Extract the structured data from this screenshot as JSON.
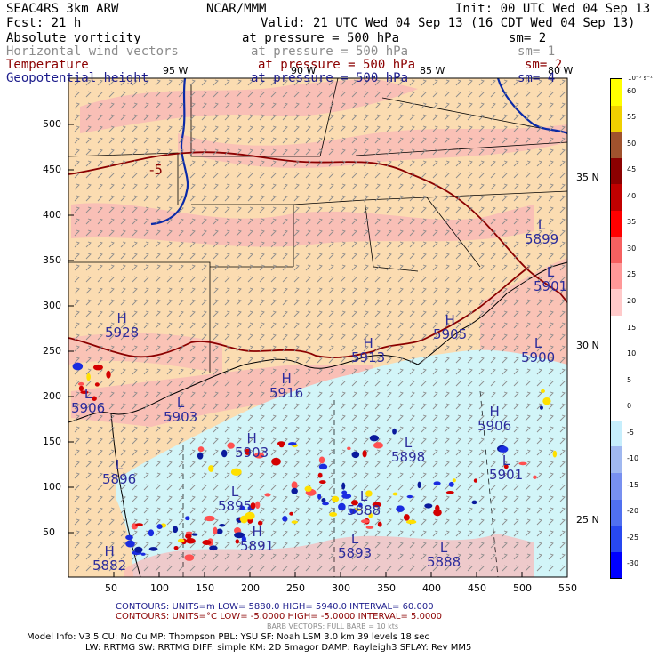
{
  "header": {
    "model_run": "SEAC4RS  3km ARW",
    "center": "NCAR/MMM",
    "init": "Init: 00 UTC Wed 04 Sep 13",
    "fcst": "Fcst:   21 h",
    "valid": "Valid: 21 UTC Wed 04 Sep 13 (16 CDT Wed 04 Sep 13)"
  },
  "fields": [
    {
      "name": "Absolute vorticity",
      "level": "at pressure =  500 hPa",
      "sm": "sm= 2",
      "color": "#000000"
    },
    {
      "name": "Horizontal wind vectors",
      "level": "at pressure =  500 hPa",
      "sm": "sm= 1",
      "color": "#8c8c8c"
    },
    {
      "name": "Temperature",
      "level": "at pressure =  500 hPa",
      "sm": "sm= 2",
      "color": "#8b0000"
    },
    {
      "name": "Geopotential height",
      "level": "at pressure =  500 hPa",
      "sm": "sm= 4",
      "color": "#1c1c8c"
    }
  ],
  "map": {
    "lon_labels": [
      "95 W",
      "90 W",
      "85 W",
      "80 W"
    ],
    "lat_labels": [
      "35 N",
      "30 N",
      "25 N"
    ],
    "x_ticks": [
      "50",
      "100",
      "150",
      "200",
      "250",
      "300",
      "350",
      "400",
      "450",
      "500",
      "550"
    ],
    "y_ticks": [
      "500",
      "450",
      "400",
      "350",
      "300",
      "250",
      "200",
      "150",
      "100",
      "50"
    ],
    "height_labels": [
      {
        "t": "H",
        "v": "5928"
      },
      {
        "t": "L",
        "v": "5906"
      },
      {
        "t": "L",
        "v": "5903"
      },
      {
        "t": "H",
        "v": "5916"
      },
      {
        "t": "H",
        "v": "5913"
      },
      {
        "t": "H",
        "v": "5905"
      },
      {
        "t": "L",
        "v": "5899"
      },
      {
        "t": "L",
        "v": "5901"
      },
      {
        "t": "L",
        "v": "5900"
      },
      {
        "t": "H",
        "v": "5906"
      },
      {
        "t": "H",
        "v": "5903"
      },
      {
        "t": "L",
        "v": "5898"
      },
      {
        "t": "L",
        "v": "5901"
      },
      {
        "t": "L",
        "v": "5896"
      },
      {
        "t": "L",
        "v": "5895"
      },
      {
        "t": "L",
        "v": "5888"
      },
      {
        "t": "H",
        "v": "5891"
      },
      {
        "t": "L",
        "v": "5893"
      },
      {
        "t": "L",
        "v": "5888"
      },
      {
        "t": "H",
        "v": "5882"
      }
    ],
    "temp_label": "-5",
    "colors": {
      "land_bg": "#fbdcb1",
      "pink": "#f9b8b8",
      "water": "#d2f5f8",
      "coast": "#000000",
      "river": "#0a2aa8",
      "temp_contour": "#8b0000",
      "wind": "#8c8c8c"
    }
  },
  "colorbar": {
    "unit": "10⁻⁵ s⁻¹",
    "labels": [
      "60",
      "55",
      "50",
      "45",
      "40",
      "35",
      "30",
      "25",
      "20",
      "15",
      "10",
      "5",
      "0",
      "-5",
      "-10",
      "-15",
      "-20",
      "-25",
      "-30"
    ],
    "colors": [
      "#ffff00",
      "#ffff00",
      "#f0d000",
      "#f0d000",
      "#a0522d",
      "#a0522d",
      "#8b0000",
      "#8b0000",
      "#c00000",
      "#c00000",
      "#ff0000",
      "#ff0000",
      "#f66060",
      "#f66060",
      "#ff9898",
      "#ff9898",
      "#ffcaca",
      "#ffcaca",
      "#ffffff",
      "#ffffff",
      "#ffffff",
      "#ffffff",
      "#ffffff",
      "#ffffff",
      "#ffffff",
      "#ffffff",
      "#c6eefc",
      "#c6eefc",
      "#a0b8f0",
      "#a0b8f0",
      "#7890f0",
      "#7890f0",
      "#5070f0",
      "#5070f0",
      "#2848f0",
      "#2848f0",
      "#0000ff",
      "#0000ff"
    ]
  },
  "footer": {
    "contours1": "CONTOURS:  UNITS=m   LOW=  5880.0       HIGH=  5940.0       INTERVAL=   60.000",
    "contours2": "CONTOURS:  UNITS=°C   LOW= -5.0000       HIGH= -5.0000       INTERVAL=    5.0000",
    "barb": "BARB VECTORS:  FULL BARB = 10 kts",
    "model_line1": "Model Info: V3.5      CU: No Cu      MP: Thompson     PBL: YSU       SF: Noah LSM     3.0 km  39 levels  18 sec",
    "model_line2": "LW: RRTMG    SW: RRTMG   DIFF: simple KM: 2D Smagor DAMP: Rayleigh3   SFLAY: Rev MM5"
  }
}
